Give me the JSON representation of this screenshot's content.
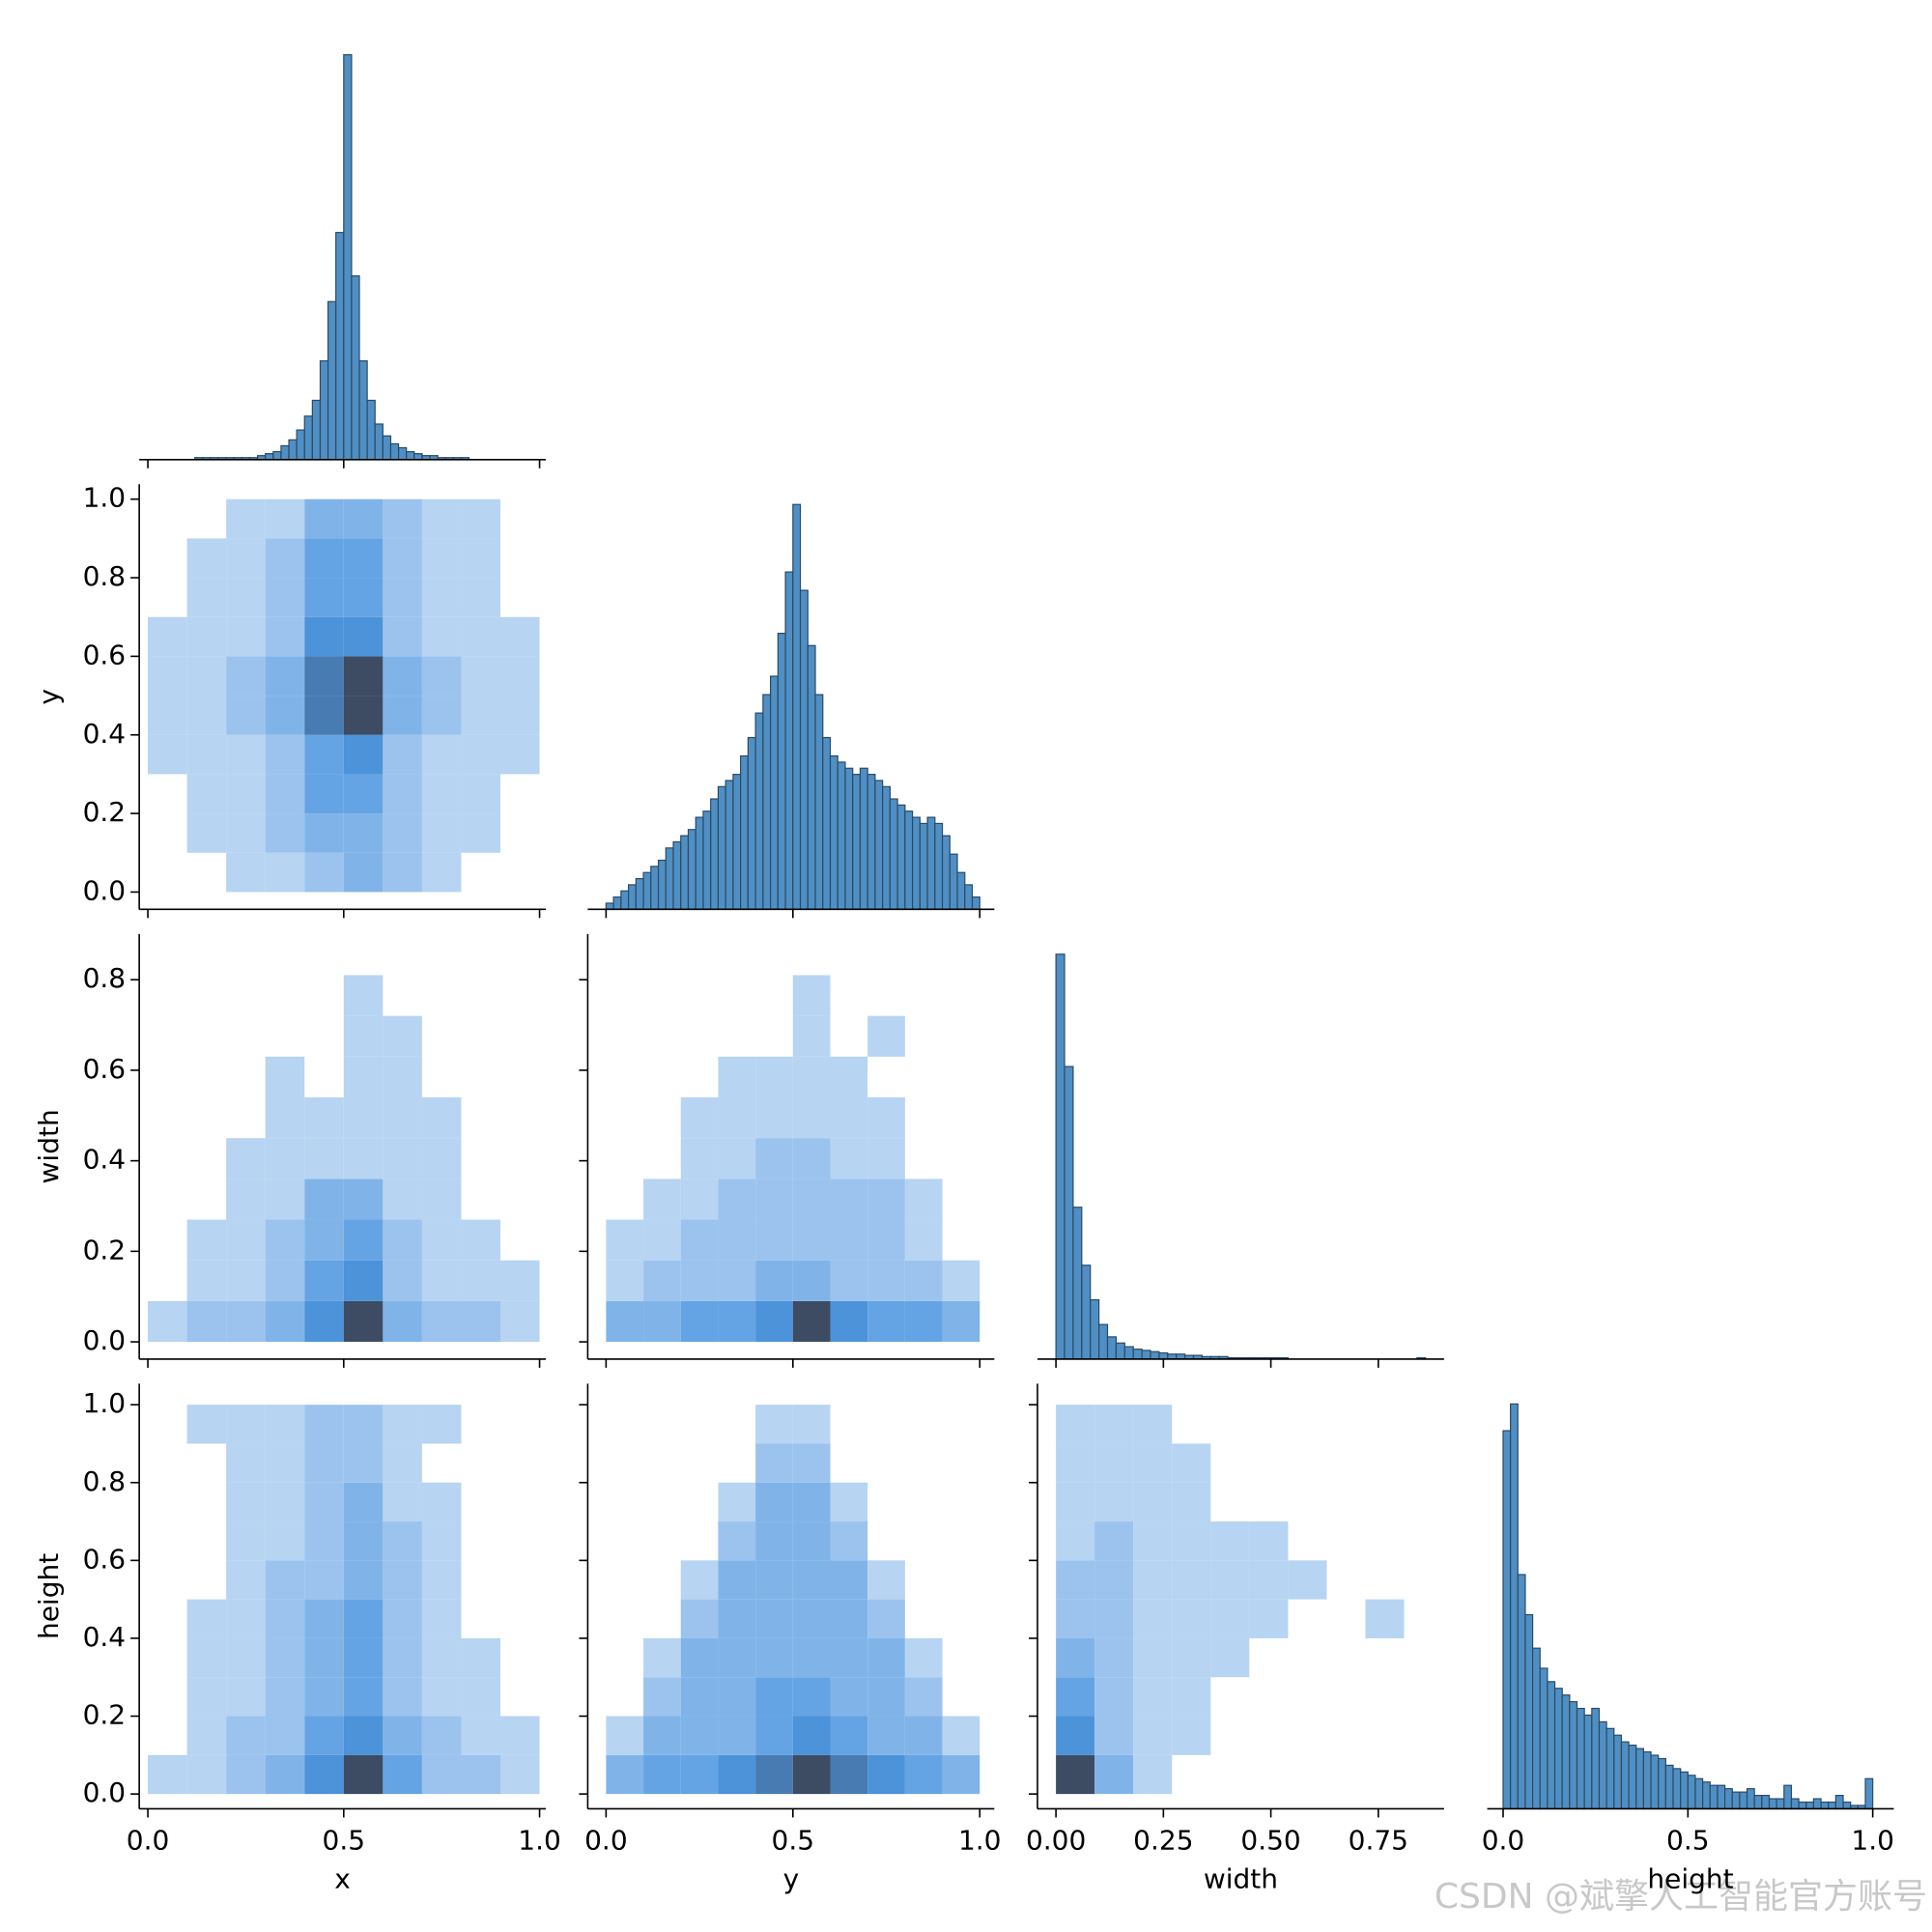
{
  "watermark": "CSDN @斌擎人工智能官方账号",
  "chart_data": [
    {
      "type": "histogram",
      "color": "#4f8fc4",
      "bins": [
        0,
        0.02,
        0.04,
        0.06,
        0.08,
        0.1,
        0.12,
        0.14,
        0.16,
        0.18,
        0.2,
        0.22,
        0.24,
        0.26,
        0.28,
        0.3,
        0.32,
        0.34,
        0.36,
        0.38,
        0.4,
        0.42,
        0.44,
        0.46,
        0.48,
        0.5,
        0.52,
        0.54,
        0.56,
        0.58,
        0.6,
        0.62,
        0.64,
        0.66,
        0.68,
        0.7,
        0.72,
        0.74,
        0.76,
        0.78,
        0.8,
        0.82,
        0.84,
        0.86,
        0.88,
        0.9,
        0.92,
        0.94,
        0.96,
        0.98,
        1
      ],
      "values": [
        0,
        0,
        0,
        0,
        0,
        0,
        1,
        1,
        1,
        1,
        1,
        1,
        1,
        1,
        2,
        3,
        4,
        7,
        10,
        15,
        22,
        30,
        50,
        80,
        115,
        205,
        93,
        50,
        30,
        18,
        12,
        8,
        6,
        4,
        3,
        2,
        2,
        1,
        1,
        1,
        1,
        0,
        0,
        0,
        0,
        0,
        0,
        0,
        0,
        0
      ]
    },
    {
      "type": "heatmap",
      "ylabel": "y",
      "ylim": [
        -0.044,
        1.038
      ],
      "yticks": [
        {
          "value": 0,
          "label": "0.0"
        },
        0.2,
        0.4,
        0.6,
        0.8,
        {
          "value": 1,
          "label": "1.0"
        }
      ],
      "xbins": [
        0,
        0.1,
        0.2,
        0.3,
        0.4,
        0.5,
        0.6,
        0.7,
        0.8,
        0.9,
        1
      ],
      "ybins": [
        0,
        0.1,
        0.2,
        0.3,
        0.4,
        0.5,
        0.6,
        0.7,
        0.8,
        0.9,
        1
      ],
      "counts": [
        [
          0,
          0,
          1,
          1,
          2,
          3,
          2,
          1,
          0,
          0
        ],
        [
          0,
          1,
          1,
          2,
          3,
          3,
          2,
          1,
          1,
          0
        ],
        [
          0,
          1,
          1,
          2,
          4,
          4,
          2,
          1,
          1,
          0
        ],
        [
          1,
          1,
          1,
          2,
          4,
          5,
          2,
          1,
          1,
          1
        ],
        [
          1,
          1,
          2,
          3,
          6,
          8,
          3,
          2,
          1,
          1
        ],
        [
          1,
          1,
          2,
          3,
          6,
          8,
          3,
          2,
          1,
          1
        ],
        [
          1,
          1,
          1,
          2,
          5,
          5,
          2,
          1,
          1,
          1
        ],
        [
          0,
          1,
          1,
          2,
          4,
          4,
          2,
          1,
          1,
          0
        ],
        [
          0,
          1,
          1,
          2,
          4,
          4,
          2,
          1,
          1,
          0
        ],
        [
          0,
          0,
          1,
          1,
          3,
          3,
          2,
          1,
          1,
          0
        ]
      ]
    },
    {
      "type": "histogram",
      "color": "#4f8fc4",
      "bins": [
        0,
        0.02,
        0.04,
        0.06,
        0.08,
        0.1,
        0.12,
        0.14,
        0.16,
        0.18,
        0.2,
        0.22,
        0.24,
        0.26,
        0.28,
        0.3,
        0.32,
        0.34,
        0.36,
        0.38,
        0.4,
        0.42,
        0.44,
        0.46,
        0.48,
        0.5,
        0.52,
        0.54,
        0.56,
        0.58,
        0.6,
        0.62,
        0.64,
        0.66,
        0.68,
        0.7,
        0.72,
        0.74,
        0.76,
        0.78,
        0.8,
        0.82,
        0.84,
        0.86,
        0.88,
        0.9,
        0.92,
        0.94,
        0.96,
        0.98,
        1
      ],
      "values": [
        1,
        2,
        3,
        4,
        5,
        6,
        7,
        8,
        10,
        11,
        12,
        13,
        15,
        16,
        18,
        20,
        21,
        22,
        25,
        28,
        32,
        35,
        38,
        45,
        55,
        66,
        52,
        43,
        35,
        28,
        25,
        24,
        23,
        22,
        23,
        22,
        21,
        20,
        18,
        17,
        16,
        15,
        14,
        15,
        14,
        12,
        9,
        6,
        4,
        2
      ]
    },
    {
      "type": "heatmap",
      "ylabel": "width",
      "ylim": [
        -0.038,
        0.901
      ],
      "yticks": [
        {
          "value": 0,
          "label": "0.0"
        },
        0.2,
        0.4,
        0.6,
        0.8
      ],
      "xbins": [
        0,
        0.1,
        0.2,
        0.3,
        0.4,
        0.5,
        0.6,
        0.7,
        0.8,
        0.9,
        1
      ],
      "ybins": [
        0,
        0.09,
        0.18,
        0.27,
        0.36,
        0.45,
        0.54,
        0.63,
        0.72,
        0.81,
        0.9
      ],
      "counts": [
        [
          1,
          2,
          2,
          3,
          5,
          8,
          3,
          2,
          2,
          1
        ],
        [
          0,
          1,
          1,
          2,
          4,
          5,
          2,
          1,
          1,
          1
        ],
        [
          0,
          1,
          1,
          2,
          3,
          4,
          2,
          1,
          1,
          0
        ],
        [
          0,
          0,
          1,
          1,
          3,
          3,
          1,
          1,
          0,
          0
        ],
        [
          0,
          0,
          1,
          1,
          1,
          1,
          1,
          1,
          0,
          0
        ],
        [
          0,
          0,
          0,
          1,
          1,
          1,
          1,
          1,
          0,
          0
        ],
        [
          0,
          0,
          0,
          1,
          0,
          1,
          1,
          0,
          0,
          0
        ],
        [
          0,
          0,
          0,
          0,
          0,
          1,
          1,
          0,
          0,
          0
        ],
        [
          0,
          0,
          0,
          0,
          0,
          1,
          0,
          0,
          0,
          0
        ],
        [
          0,
          0,
          0,
          0,
          0,
          0,
          0,
          0,
          0,
          0
        ]
      ]
    },
    {
      "type": "heatmap",
      "xbins": [
        0,
        0.1,
        0.2,
        0.3,
        0.4,
        0.5,
        0.6,
        0.7,
        0.8,
        0.9,
        1
      ],
      "ybins": [
        0,
        0.09,
        0.18,
        0.27,
        0.36,
        0.45,
        0.54,
        0.63,
        0.72,
        0.81,
        0.9
      ],
      "counts": [
        [
          3,
          3,
          4,
          4,
          5,
          8,
          5,
          4,
          4,
          3
        ],
        [
          1,
          2,
          2,
          2,
          3,
          3,
          2,
          2,
          2,
          1
        ],
        [
          1,
          1,
          2,
          2,
          2,
          2,
          2,
          2,
          1,
          0
        ],
        [
          0,
          1,
          1,
          2,
          2,
          2,
          2,
          2,
          1,
          0
        ],
        [
          0,
          0,
          1,
          1,
          2,
          2,
          1,
          1,
          0,
          0
        ],
        [
          0,
          0,
          1,
          1,
          1,
          1,
          1,
          1,
          0,
          0
        ],
        [
          0,
          0,
          0,
          1,
          1,
          1,
          1,
          0,
          0,
          0
        ],
        [
          0,
          0,
          0,
          0,
          0,
          1,
          0,
          1,
          0,
          0
        ],
        [
          0,
          0,
          0,
          0,
          0,
          1,
          0,
          0,
          0,
          0
        ],
        [
          0,
          0,
          0,
          0,
          0,
          0,
          0,
          0,
          0,
          0
        ]
      ]
    },
    {
      "type": "histogram",
      "color": "#4f8fc4",
      "bins": [
        0,
        0.02,
        0.04,
        0.06,
        0.08,
        0.1,
        0.12,
        0.14,
        0.16,
        0.18,
        0.2,
        0.22,
        0.24,
        0.26,
        0.28,
        0.3,
        0.32,
        0.34,
        0.36,
        0.38,
        0.4,
        0.42,
        0.44,
        0.46,
        0.48,
        0.5,
        0.52,
        0.54,
        0.56,
        0.58,
        0.6,
        0.62,
        0.64,
        0.66,
        0.68,
        0.7,
        0.72,
        0.74,
        0.76,
        0.78,
        0.8,
        0.82,
        0.84,
        0.86
      ],
      "values": [
        328,
        237,
        123,
        76,
        48,
        28,
        18,
        13,
        10,
        8,
        7,
        6,
        5,
        4,
        4,
        3,
        3,
        2,
        2,
        2,
        1,
        1,
        1,
        1,
        1,
        1,
        1,
        0,
        0,
        0,
        0,
        0,
        0,
        0,
        0,
        0,
        0,
        0,
        0,
        0,
        0,
        0,
        1
      ]
    },
    {
      "type": "heatmap",
      "xlabel": "x",
      "ylabel": "height",
      "xlim": [
        -0.022,
        1.016
      ],
      "xticks": [
        {
          "value": 0,
          "label": "0.0"
        },
        0.5,
        {
          "value": 1,
          "label": "1.0"
        }
      ],
      "ylim": [
        -0.038,
        1.054
      ],
      "yticks": [
        {
          "value": 0,
          "label": "0.0"
        },
        0.2,
        0.4,
        0.6,
        0.8,
        {
          "value": 1,
          "label": "1.0"
        }
      ],
      "xbins": [
        0,
        0.1,
        0.2,
        0.3,
        0.4,
        0.5,
        0.6,
        0.7,
        0.8,
        0.9,
        1
      ],
      "ybins": [
        0,
        0.1,
        0.2,
        0.3,
        0.4,
        0.5,
        0.6,
        0.7,
        0.8,
        0.9,
        1
      ],
      "counts": [
        [
          1,
          1,
          2,
          3,
          5,
          8,
          4,
          2,
          2,
          1
        ],
        [
          0,
          1,
          2,
          2,
          4,
          5,
          3,
          2,
          1,
          1
        ],
        [
          0,
          1,
          1,
          2,
          3,
          4,
          2,
          1,
          1,
          0
        ],
        [
          0,
          1,
          1,
          2,
          3,
          4,
          2,
          1,
          1,
          0
        ],
        [
          0,
          1,
          1,
          2,
          3,
          4,
          2,
          1,
          0,
          0
        ],
        [
          0,
          0,
          1,
          2,
          2,
          3,
          2,
          1,
          0,
          0
        ],
        [
          0,
          0,
          1,
          1,
          2,
          3,
          2,
          1,
          0,
          0
        ],
        [
          0,
          0,
          1,
          1,
          2,
          3,
          1,
          1,
          0,
          0
        ],
        [
          0,
          0,
          1,
          1,
          2,
          2,
          1,
          0,
          0,
          0
        ],
        [
          0,
          1,
          1,
          1,
          2,
          2,
          1,
          1,
          0,
          0
        ]
      ]
    },
    {
      "type": "heatmap",
      "xlabel": "y",
      "xlim": [
        -0.049,
        1.039
      ],
      "xticks": [
        {
          "value": 0,
          "label": "0.0"
        },
        0.5,
        {
          "value": 1,
          "label": "1.0"
        }
      ],
      "xbins": [
        0,
        0.1,
        0.2,
        0.3,
        0.4,
        0.5,
        0.6,
        0.7,
        0.8,
        0.9,
        1
      ],
      "ybins": [
        0,
        0.1,
        0.2,
        0.3,
        0.4,
        0.5,
        0.6,
        0.7,
        0.8,
        0.9,
        1
      ],
      "counts": [
        [
          3,
          4,
          4,
          5,
          6,
          8,
          6,
          5,
          4,
          3
        ],
        [
          1,
          3,
          3,
          3,
          4,
          5,
          4,
          3,
          3,
          1
        ],
        [
          0,
          2,
          3,
          3,
          4,
          4,
          3,
          3,
          2,
          0
        ],
        [
          0,
          1,
          3,
          3,
          3,
          3,
          3,
          3,
          1,
          0
        ],
        [
          0,
          0,
          2,
          3,
          3,
          3,
          3,
          2,
          0,
          0
        ],
        [
          0,
          0,
          1,
          3,
          3,
          3,
          3,
          1,
          0,
          0
        ],
        [
          0,
          0,
          0,
          2,
          3,
          3,
          2,
          0,
          0,
          0
        ],
        [
          0,
          0,
          0,
          1,
          3,
          3,
          1,
          0,
          0,
          0
        ],
        [
          0,
          0,
          0,
          0,
          2,
          2,
          0,
          0,
          0,
          0
        ],
        [
          0,
          0,
          0,
          0,
          1,
          1,
          0,
          0,
          0,
          0
        ]
      ]
    },
    {
      "type": "heatmap",
      "xlabel": "width",
      "xlim": [
        -0.043,
        0.903
      ],
      "xticks": [
        {
          "value": 0,
          "label": "0.00"
        },
        0.25,
        {
          "value": 0.5,
          "label": "0.50"
        },
        0.75
      ],
      "xbins": [
        0,
        0.09,
        0.18,
        0.27,
        0.36,
        0.45,
        0.54,
        0.63,
        0.72,
        0.81,
        0.9
      ],
      "ybins": [
        0,
        0.1,
        0.2,
        0.3,
        0.4,
        0.5,
        0.6,
        0.7,
        0.8,
        0.9,
        1
      ],
      "counts": [
        [
          8,
          3,
          1,
          0,
          0,
          0,
          0,
          0,
          0,
          0
        ],
        [
          5,
          2,
          1,
          1,
          0,
          0,
          0,
          0,
          0,
          0
        ],
        [
          4,
          2,
          1,
          1,
          0,
          0,
          0,
          0,
          0,
          0
        ],
        [
          3,
          2,
          1,
          1,
          1,
          0,
          0,
          0,
          0,
          0
        ],
        [
          2,
          2,
          1,
          1,
          1,
          1,
          0,
          0,
          1,
          0
        ],
        [
          2,
          2,
          1,
          1,
          1,
          1,
          1,
          0,
          0,
          0
        ],
        [
          1,
          2,
          1,
          1,
          1,
          1,
          0,
          0,
          0,
          0
        ],
        [
          1,
          1,
          1,
          1,
          0,
          0,
          0,
          0,
          0,
          0
        ],
        [
          1,
          1,
          1,
          1,
          0,
          0,
          0,
          0,
          0,
          0
        ],
        [
          1,
          1,
          1,
          0,
          0,
          0,
          0,
          0,
          0,
          0
        ]
      ]
    },
    {
      "type": "histogram",
      "color": "#4f8fc4",
      "xlabel": "height",
      "xlim": [
        -0.043,
        1.057
      ],
      "xticks": [
        {
          "value": 0,
          "label": "0.0"
        },
        0.5,
        {
          "value": 1,
          "label": "1.0"
        }
      ],
      "bins": [
        0,
        0.02,
        0.04,
        0.06,
        0.08,
        0.1,
        0.12,
        0.14,
        0.16,
        0.18,
        0.2,
        0.22,
        0.24,
        0.26,
        0.28,
        0.3,
        0.32,
        0.34,
        0.36,
        0.38,
        0.4,
        0.42,
        0.44,
        0.46,
        0.48,
        0.5,
        0.52,
        0.54,
        0.56,
        0.58,
        0.6,
        0.62,
        0.64,
        0.66,
        0.68,
        0.7,
        0.72,
        0.74,
        0.76,
        0.78,
        0.8,
        0.82,
        0.84,
        0.86,
        0.88,
        0.9,
        0.92,
        0.94,
        0.96,
        0.98,
        1
      ],
      "values": [
        113,
        121,
        70,
        58,
        48,
        42,
        38,
        36,
        34,
        32,
        30,
        28,
        30,
        26,
        24,
        22,
        20,
        19,
        18,
        17,
        16,
        15,
        13,
        12,
        11,
        10,
        9,
        8,
        7,
        7,
        6,
        5,
        5,
        6,
        4,
        4,
        3,
        3,
        7,
        3,
        2,
        2,
        3,
        2,
        2,
        4,
        2,
        1,
        1,
        9
      ]
    }
  ]
}
